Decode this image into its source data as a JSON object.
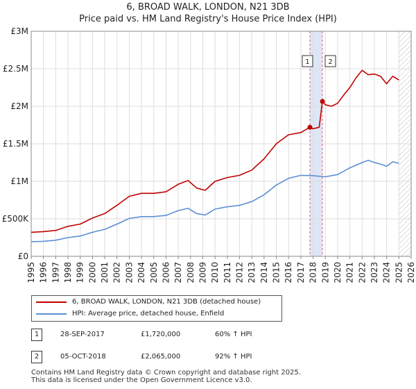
{
  "chart_data": {
    "type": "line",
    "title": "6, BROAD WALK, LONDON, N21 3DB",
    "subtitle": "Price paid vs. HM Land Registry's House Price Index (HPI)",
    "xlabel": "",
    "ylabel": "",
    "xlim": [
      1995,
      2026
    ],
    "ylim": [
      0,
      3000000
    ],
    "y_ticks": [
      0,
      500000,
      1000000,
      1500000,
      2000000,
      2500000,
      3000000
    ],
    "y_tick_labels": [
      "£0",
      "£500K",
      "£1M",
      "£1.5M",
      "£2M",
      "£2.5M",
      "£3M"
    ],
    "x_ticks": [
      1995,
      1996,
      1997,
      1998,
      1999,
      2000,
      2001,
      2002,
      2003,
      2004,
      2005,
      2006,
      2007,
      2008,
      2009,
      2010,
      2011,
      2012,
      2013,
      2014,
      2015,
      2016,
      2017,
      2018,
      2019,
      2020,
      2021,
      2022,
      2023,
      2024,
      2025,
      2026
    ],
    "x_tick_labels": [
      "1995",
      "1996",
      "1997",
      "1998",
      "1999",
      "2000",
      "2001",
      "2002",
      "2003",
      "2004",
      "2005",
      "2006",
      "2007",
      "2008",
      "2009",
      "2010",
      "2011",
      "2012",
      "2013",
      "2014",
      "2015",
      "2016",
      "2017",
      "2018",
      "2019",
      "2020",
      "2021",
      "2022",
      "2023",
      "2024",
      "2025",
      "2026"
    ],
    "grid": true,
    "future_data_from": 2025.0,
    "shaded_sale_period": [
      2017.74,
      2018.76
    ],
    "series": [
      {
        "name": "6, BROAD WALK, LONDON, N21 3DB (detached house)",
        "color": "#c00000",
        "x": [
          1995.0,
          1996.0,
          1997.0,
          1998.0,
          1999.0,
          2000.0,
          2001.0,
          2002.0,
          2003.0,
          2004.0,
          2005.0,
          2006.0,
          2007.0,
          2007.8,
          2008.5,
          2009.2,
          2010.0,
          2011.0,
          2012.0,
          2013.0,
          2014.0,
          2015.0,
          2016.0,
          2017.0,
          2017.74,
          2018.0,
          2018.5,
          2018.76,
          2019.0,
          2019.5,
          2020.0,
          2020.5,
          2021.0,
          2021.5,
          2022.0,
          2022.5,
          2023.0,
          2023.5,
          2024.0,
          2024.5,
          2025.0
        ],
        "values": [
          320000,
          330000,
          345000,
          400000,
          430000,
          510000,
          570000,
          680000,
          800000,
          840000,
          840000,
          860000,
          960000,
          1010000,
          910000,
          880000,
          1000000,
          1050000,
          1080000,
          1150000,
          1300000,
          1500000,
          1620000,
          1650000,
          1720000,
          1700000,
          1720000,
          2065000,
          2020000,
          2000000,
          2040000,
          2150000,
          2250000,
          2380000,
          2480000,
          2420000,
          2430000,
          2400000,
          2300000,
          2400000,
          2350000
        ]
      },
      {
        "name": "HPI: Average price, detached house, Enfield",
        "color": "#5b8fd4",
        "x": [
          1995.0,
          1996.0,
          1997.0,
          1998.0,
          1999.0,
          2000.0,
          2001.0,
          2002.0,
          2003.0,
          2004.0,
          2005.0,
          2006.0,
          2007.0,
          2007.8,
          2008.5,
          2009.2,
          2010.0,
          2011.0,
          2012.0,
          2013.0,
          2014.0,
          2015.0,
          2016.0,
          2017.0,
          2018.0,
          2019.0,
          2020.0,
          2021.0,
          2022.0,
          2022.5,
          2023.0,
          2023.5,
          2024.0,
          2024.5,
          2025.0
        ],
        "values": [
          195000,
          200000,
          215000,
          250000,
          270000,
          320000,
          360000,
          430000,
          505000,
          530000,
          530000,
          545000,
          610000,
          640000,
          570000,
          550000,
          630000,
          660000,
          680000,
          730000,
          820000,
          950000,
          1040000,
          1080000,
          1075000,
          1060000,
          1090000,
          1180000,
          1250000,
          1280000,
          1250000,
          1230000,
          1200000,
          1260000,
          1240000
        ]
      }
    ],
    "annotations": [
      {
        "label": "1",
        "x": 2017.74,
        "y": 1720000
      },
      {
        "label": "2",
        "x": 2018.76,
        "y": 2065000
      }
    ],
    "legend_position": "below"
  },
  "legend": {
    "property_label": "6, BROAD WALK, LONDON, N21 3DB (detached house)",
    "hpi_label": "HPI: Average price, detached house, Enfield"
  },
  "sales": [
    {
      "num": "1",
      "date": "28-SEP-2017",
      "price": "£1,720,000",
      "hpi_change": "60% ↑ HPI"
    },
    {
      "num": "2",
      "date": "05-OCT-2018",
      "price": "£2,065,000",
      "hpi_change": "92% ↑ HPI"
    }
  ],
  "footer": {
    "line1": "Contains HM Land Registry data © Crown copyright and database right 2025.",
    "line2": "This data is licensed under the Open Government Licence v3.0."
  },
  "colors": {
    "property": "#c00000",
    "hpi": "#5b8fd4",
    "grid": "#dddddd",
    "axis": "#888888",
    "shade": "#dde6f5",
    "vline": "#e06060"
  }
}
